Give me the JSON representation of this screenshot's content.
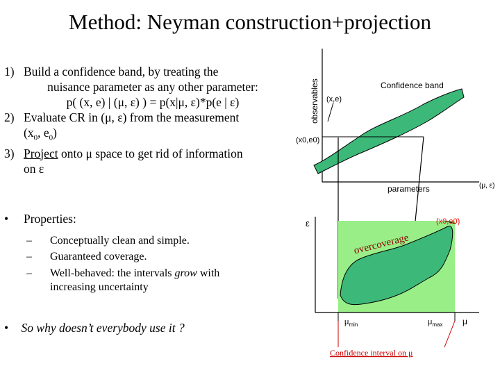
{
  "title": "Method: Neyman construction+projection",
  "steps": {
    "s1": {
      "num": "1)",
      "line1": "Build a confidence band, by treating the",
      "line2": "nuisance parameter as any other parameter:",
      "line3": "p( (x, e) | (μ, ε) ) = p(x|μ, ε)*p(e | ε)"
    },
    "s2": {
      "num": "2)",
      "line1": "Evaluate CR in (μ, ε) from the measurement",
      "line2a": "(x",
      "sub0": "0",
      "comma": ", e",
      "sub0b": "0",
      "close": ")"
    },
    "s3": {
      "num": "3)",
      "word": "Project",
      "rest": " onto μ space to get rid of information",
      "line2": "on ε"
    }
  },
  "properties": {
    "bullet": "•",
    "label": "Properties:",
    "dash": "–",
    "items": [
      "Conceptually clean and simple.",
      "Guaranteed coverage.",
      "Well-behaved: the intervals ",
      "grow",
      " with",
      "increasing uncertainty"
    ]
  },
  "why": {
    "bullet": "•",
    "text": "So why doesn’t everybody use it ?"
  },
  "top_plot": {
    "ylabel": "observables",
    "band_label": "Confidence band",
    "xe": "(x,e)",
    "x0e0": "(x0,e0)",
    "xlabel": "parameters",
    "axis_end": "(μ, ε)",
    "band_color": "#3cb878"
  },
  "bottom_plot": {
    "ylabel": "ε",
    "point": "(x0,e0)",
    "overcoverage": "overcoverage",
    "mu_min": "μ",
    "min_sub": "min",
    "mu_max": "μ",
    "max_sub": "max",
    "mu_axis": "μ",
    "interval": "Confidence interval on μ",
    "region_color": "#3cb878",
    "projection_color": "#99ee88",
    "point_color": "#ff0000",
    "interval_color": "#cc0000"
  }
}
